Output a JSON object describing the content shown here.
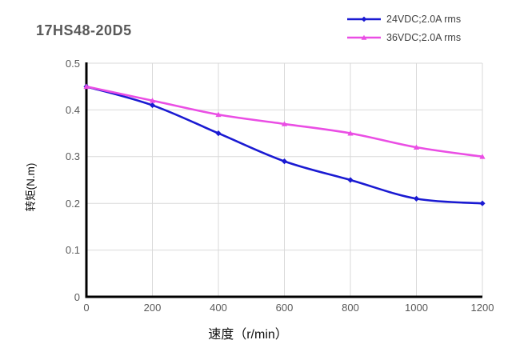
{
  "chart_data": {
    "type": "line",
    "title": "17HS48-20D5",
    "x": [
      0,
      200,
      400,
      600,
      800,
      1000,
      1200
    ],
    "series": [
      {
        "name": "24VDC;2.0A rms",
        "color": "#1A1AD2",
        "marker": "diamond",
        "values": [
          0.45,
          0.41,
          0.35,
          0.29,
          0.25,
          0.21,
          0.2
        ]
      },
      {
        "name": "36VDC;2.0A rms",
        "color": "#EA4EE4",
        "marker": "triangle",
        "values": [
          0.45,
          0.42,
          0.39,
          0.37,
          0.35,
          0.32,
          0.3
        ]
      }
    ],
    "xlabel": "速度（r/min）",
    "ylabel": "转矩(N.m)",
    "xlim": [
      0,
      1200
    ],
    "ylim": [
      0,
      0.5
    ],
    "x_tick_labels": [
      "0",
      "200",
      "400",
      "600",
      "800",
      "1000",
      "1200"
    ],
    "y_tick_labels": [
      "0",
      "0.1",
      "0.2",
      "0.3",
      "0.4",
      "0.5"
    ],
    "grid": true,
    "legend_position": "top-right",
    "colors": {
      "gridline": "#D9D9D9",
      "axis": "#000000",
      "tick_text": "#595959",
      "title_text": "#595959"
    }
  }
}
